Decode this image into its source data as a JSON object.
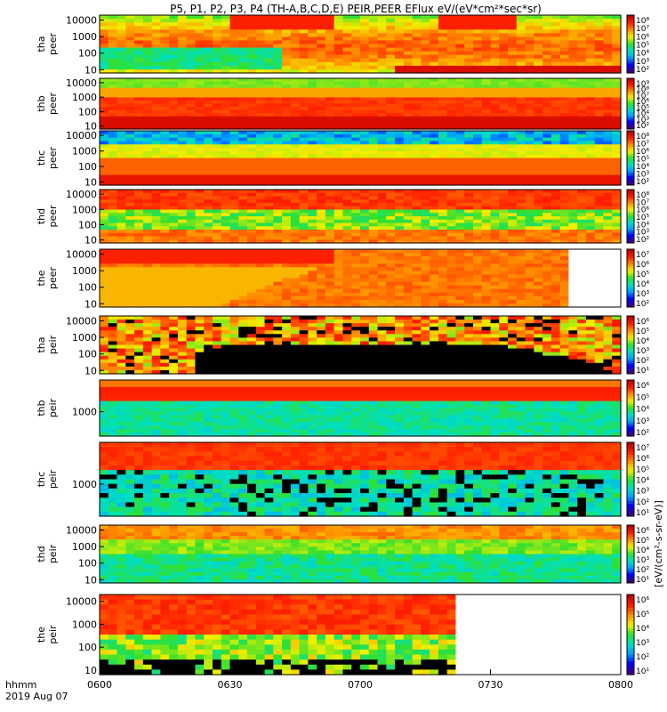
{
  "chart_data": {
    "type": "heatmap",
    "title": "P5, P1, P2, P3, P4 (TH-A,B,C,D,E) PEIR,PEER EFlux eV/(eV*cm²*sec*sr)",
    "time_label": "hhmm",
    "date_label": "2019 Aug 07",
    "x_ticks": [
      "0600",
      "0630",
      "0700",
      "0730",
      "0800"
    ],
    "xlim": [
      "06:00",
      "08:00"
    ],
    "colorbar_label": "[eV/(cm²-s-sr-eV)]",
    "colorscale": [
      "#3c0080",
      "#0000ff",
      "#00a0ff",
      "#00e0c0",
      "#30e030",
      "#f0f000",
      "#ff9000",
      "#ff2000",
      "#c00000"
    ],
    "panels": [
      {
        "label": "tha\npeer",
        "yticks": [
          "10000",
          "1000",
          "100",
          "10"
        ],
        "cb_ticks": [
          "10⁸",
          "10⁷",
          "10⁶",
          "10⁵",
          "10⁴",
          "10³",
          "10²"
        ],
        "log_ymin": 0.8,
        "log_ymax": 4.3
      },
      {
        "label": "thb\npeer",
        "yticks": [
          "10000",
          "1000",
          "100",
          "10"
        ],
        "cb_ticks": [
          "10⁹",
          "10⁸",
          "10⁷",
          "10⁶",
          "10⁵",
          "10⁴",
          "10³",
          "10²"
        ],
        "log_ymin": 0.8,
        "log_ymax": 4.3
      },
      {
        "label": "thc\npeer",
        "yticks": [
          "10000",
          "1000",
          "100",
          "10"
        ],
        "cb_ticks": [
          "10⁸",
          "10⁷",
          "10⁶",
          "10⁵",
          "10⁴",
          "10³",
          "10²"
        ],
        "log_ymin": 0.8,
        "log_ymax": 4.3
      },
      {
        "label": "thd\npeer",
        "yticks": [
          "10000",
          "1000",
          "100",
          "10"
        ],
        "cb_ticks": [
          "10⁸",
          "10⁷",
          "10⁶",
          "10⁵",
          "10⁴",
          "10³",
          "10²"
        ],
        "log_ymin": 0.8,
        "log_ymax": 4.3
      },
      {
        "label": "the\npeer",
        "yticks": [
          "10000",
          "1000",
          "100",
          "10"
        ],
        "cb_ticks": [
          "10⁷",
          "10⁶",
          "10⁵",
          "10⁴",
          "10³",
          "10²"
        ],
        "log_ymin": 0.8,
        "log_ymax": 4.3
      },
      {
        "label": "tha\npeir",
        "yticks": [
          "10000",
          "1000",
          "100",
          "10"
        ],
        "cb_ticks": [
          "10⁶",
          "10⁵",
          "10⁴",
          "10³",
          "10²",
          "10¹"
        ],
        "log_ymin": 0.8,
        "log_ymax": 4.3
      },
      {
        "label": "thb\npeir",
        "yticks": [
          "1000"
        ],
        "cb_ticks": [
          "10⁶",
          "10⁵",
          "10⁴",
          "10³",
          "10²"
        ],
        "log_ymin": 2.0,
        "log_ymax": 4.3
      },
      {
        "label": "thc\npeir",
        "yticks": [
          "1000"
        ],
        "cb_ticks": [
          "10⁷",
          "10⁶",
          "10⁵",
          "10⁴",
          "10³",
          "10²",
          "10¹"
        ],
        "log_ymin": 2.0,
        "log_ymax": 4.3
      },
      {
        "label": "thd\npeir",
        "yticks": [
          "10000",
          "1000",
          "100",
          "10"
        ],
        "cb_ticks": [
          "10⁶",
          "10⁵",
          "10⁴",
          "10³",
          "10²",
          "10¹"
        ],
        "log_ymin": 0.8,
        "log_ymax": 4.3
      },
      {
        "label": "the\npeir",
        "yticks": [
          "10000",
          "1000",
          "100",
          "10"
        ],
        "cb_ticks": [
          "10⁶",
          "10⁵",
          "10⁴",
          "10³",
          "10²",
          "10¹"
        ],
        "log_ymin": 0.8,
        "log_ymax": 4.3
      }
    ]
  }
}
